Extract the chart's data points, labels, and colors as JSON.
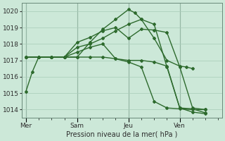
{
  "xlabel": "Pression niveau de la mer( hPa )",
  "background_color": "#cce8d8",
  "grid_color": "#a8ccb8",
  "line_color": "#2d6a2d",
  "ylim": [
    1013.5,
    1020.5
  ],
  "yticks": [
    1014,
    1015,
    1016,
    1017,
    1018,
    1019,
    1020
  ],
  "day_labels": [
    "Mer",
    "Sam",
    "Jeu",
    "Ven"
  ],
  "day_positions": [
    0,
    4,
    8,
    12
  ],
  "xlim": [
    -0.3,
    15.3
  ],
  "lines": [
    {
      "x": [
        0,
        0.5,
        1,
        2,
        3,
        4,
        5,
        6,
        7,
        8,
        8.5,
        9,
        10,
        11,
        12,
        12.5,
        13
      ],
      "y": [
        1015.1,
        1016.3,
        1017.2,
        1017.2,
        1017.2,
        1017.2,
        1018.1,
        1018.9,
        1019.5,
        1020.1,
        1019.9,
        1019.5,
        1018.35,
        1017.0,
        1016.65,
        1016.6,
        1016.5
      ]
    },
    {
      "x": [
        0,
        1,
        2,
        3,
        4,
        5,
        6,
        7,
        8,
        9,
        10,
        11,
        12,
        13,
        14
      ],
      "y": [
        1017.2,
        1017.2,
        1017.2,
        1017.2,
        1017.2,
        1017.2,
        1017.2,
        1017.1,
        1017.0,
        1017.0,
        1016.9,
        1016.65,
        1014.1,
        1014.05,
        1013.8
      ]
    },
    {
      "x": [
        0,
        1,
        2,
        3,
        4,
        5,
        6,
        7,
        8,
        9,
        10,
        11,
        12,
        13,
        14
      ],
      "y": [
        1017.2,
        1017.2,
        1017.2,
        1017.2,
        1018.1,
        1018.4,
        1018.8,
        1019.0,
        1018.35,
        1018.9,
        1018.85,
        1018.7,
        1016.6,
        1014.1,
        1014.0
      ]
    },
    {
      "x": [
        0,
        1,
        2,
        3,
        4,
        5,
        6,
        7,
        8,
        9,
        10,
        11,
        12,
        13,
        14
      ],
      "y": [
        1017.2,
        1017.2,
        1017.2,
        1017.2,
        1017.8,
        1018.0,
        1018.35,
        1018.8,
        1019.2,
        1019.5,
        1019.2,
        1016.6,
        1014.1,
        1013.85,
        1013.75
      ]
    },
    {
      "x": [
        0,
        1,
        2,
        3,
        4,
        5,
        6,
        7,
        8,
        9,
        10,
        11,
        12,
        13,
        14
      ],
      "y": [
        1017.2,
        1017.2,
        1017.2,
        1017.2,
        1017.5,
        1017.8,
        1018.0,
        1017.1,
        1016.9,
        1016.6,
        1014.5,
        1014.1,
        1014.05,
        1014.0,
        1014.0
      ]
    }
  ],
  "vline_positions": [
    0,
    4,
    8,
    12
  ],
  "marker": "D",
  "markersize": 2.0,
  "linewidth": 1.0
}
